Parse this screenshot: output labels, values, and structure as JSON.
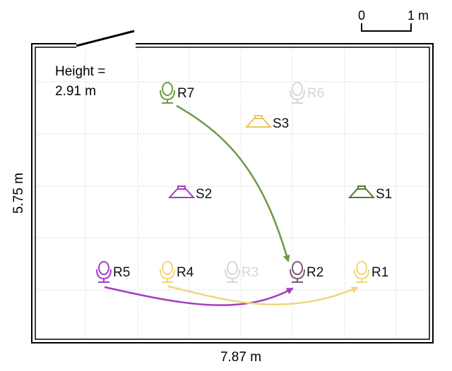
{
  "scale_bar": {
    "start_label": "0",
    "end_label": "1 m"
  },
  "room": {
    "height_line1": "Height =",
    "height_line2": "2.91 m",
    "width_label": "7.87 m",
    "depth_label": "5.75 m"
  },
  "colors": {
    "green": "#6a9b45",
    "dark_green": "#4f7a33",
    "purple": "#a43cc4",
    "yellow": "#f0d57a",
    "brown": "#7a5a6e",
    "faded": "#d6d6d6",
    "grid": "#d9d9d9",
    "wall": "#000000"
  },
  "sources": [
    {
      "label": "S1",
      "color": "#4f7a33"
    },
    {
      "label": "S2",
      "color": "#a43cc4"
    },
    {
      "label": "S3",
      "color": "#e8c75e"
    }
  ],
  "receivers": [
    {
      "label": "R1",
      "color": "#f0d57a",
      "faded": false
    },
    {
      "label": "R2",
      "color": "#7a5a6e",
      "faded": false
    },
    {
      "label": "R3",
      "color": "#d6d6d6",
      "faded": true
    },
    {
      "label": "R4",
      "color": "#f0d57a",
      "faded": false
    },
    {
      "label": "R5",
      "color": "#a43cc4",
      "faded": false
    },
    {
      "label": "R6",
      "color": "#d6d6d6",
      "faded": true
    },
    {
      "label": "R7",
      "color": "#6a9b45",
      "faded": false
    }
  ],
  "trajectories": [
    {
      "from": "R7",
      "to": "R2",
      "color": "#6a9b45"
    },
    {
      "from": "R5",
      "to": "R2",
      "color": "#a43cc4"
    },
    {
      "from": "R4",
      "to": "R1",
      "color": "#f0d57a"
    }
  ]
}
